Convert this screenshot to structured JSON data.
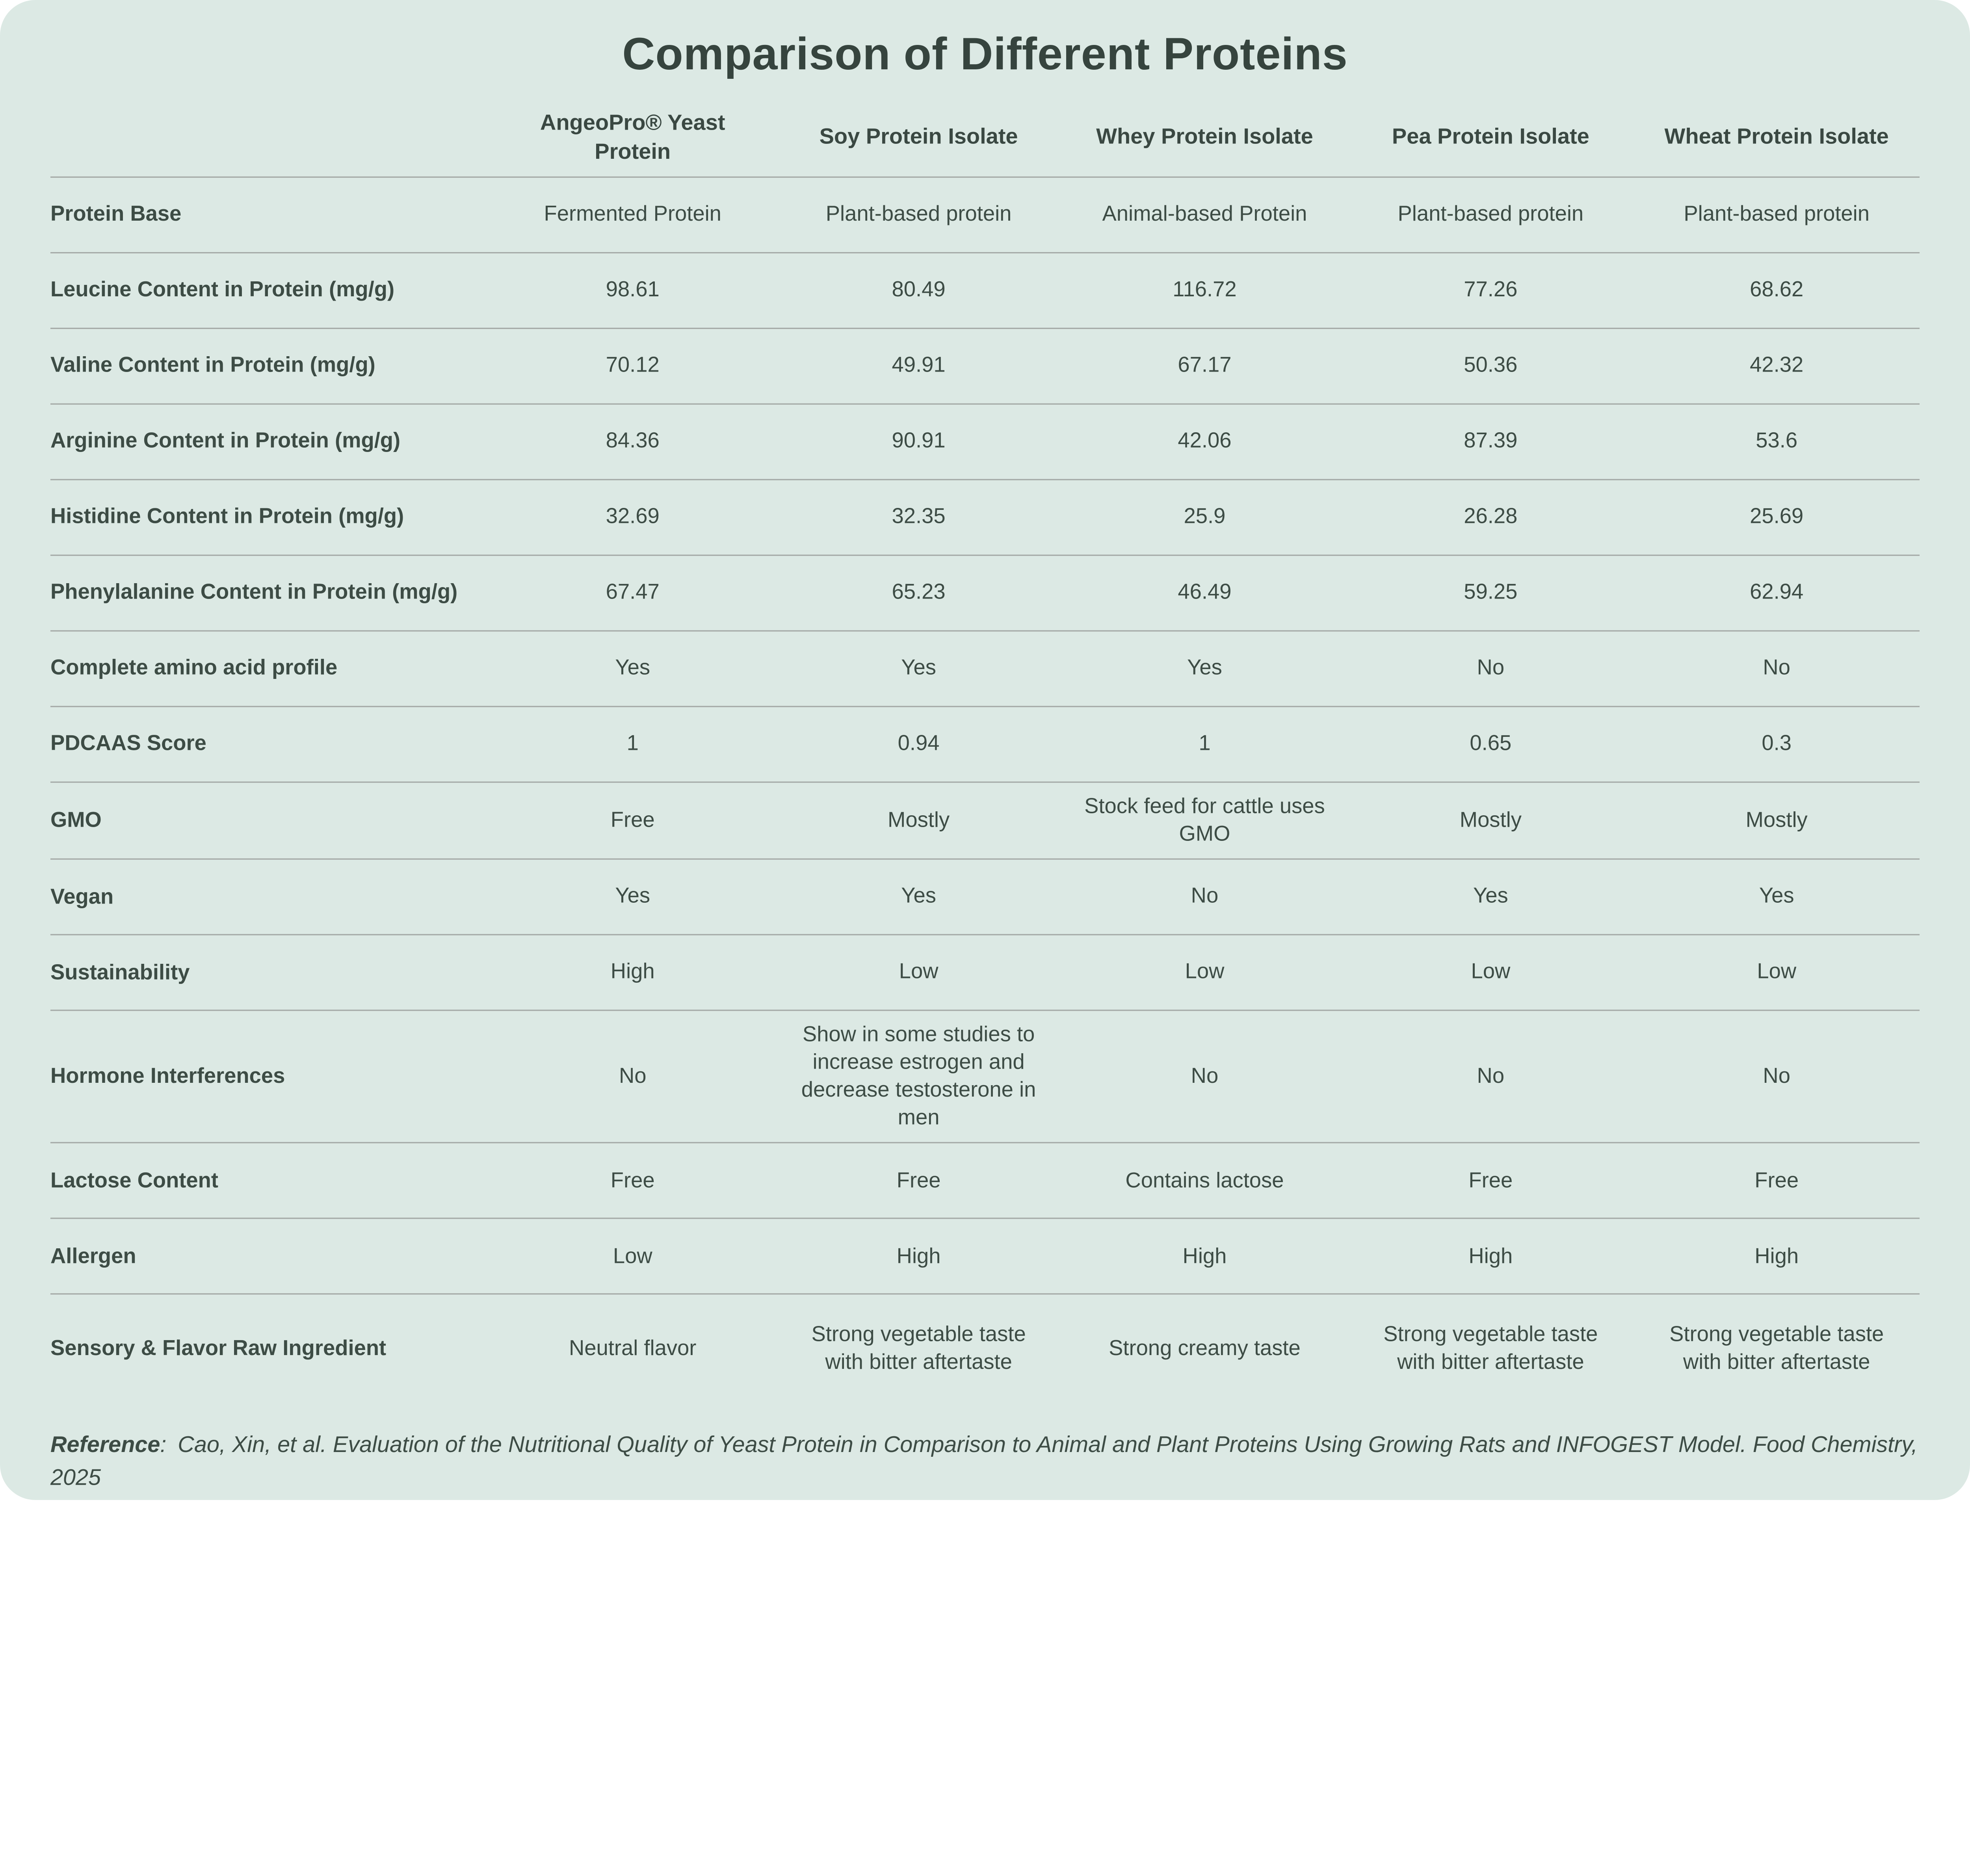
{
  "title": "Comparison of Different Proteins",
  "chart_data": {
    "type": "table",
    "title": "Comparison of Different Proteins",
    "columns": [
      "AngeoPro® Yeast Protein",
      "Soy Protein Isolate",
      "Whey Protein Isolate",
      "Pea Protein Isolate",
      "Wheat Protein Isolate"
    ],
    "rows": [
      {
        "label": "Protein Base",
        "values": [
          "Fermented Protein",
          "Plant-based protein",
          "Animal-based Protein",
          "Plant-based protein",
          "Plant-based protein"
        ]
      },
      {
        "label": "Leucine Content in Protein (mg/g)",
        "values": [
          "98.61",
          "80.49",
          "116.72",
          "77.26",
          "68.62"
        ]
      },
      {
        "label": "Valine Content in Protein (mg/g)",
        "values": [
          "70.12",
          "49.91",
          "67.17",
          "50.36",
          "42.32"
        ]
      },
      {
        "label": "Arginine Content in Protein (mg/g)",
        "values": [
          "84.36",
          "90.91",
          "42.06",
          "87.39",
          "53.6"
        ]
      },
      {
        "label": "Histidine Content in Protein (mg/g)",
        "values": [
          "32.69",
          "32.35",
          "25.9",
          "26.28",
          "25.69"
        ]
      },
      {
        "label": "Phenylalanine Content in Protein (mg/g)",
        "values": [
          "67.47",
          "65.23",
          "46.49",
          "59.25",
          "62.94"
        ]
      },
      {
        "label": "Complete amino acid profile",
        "values": [
          "Yes",
          "Yes",
          "Yes",
          "No",
          "No"
        ]
      },
      {
        "label": "PDCAAS Score",
        "values": [
          "1",
          "0.94",
          "1",
          "0.65",
          "0.3"
        ]
      },
      {
        "label": "GMO",
        "values": [
          "Free",
          "Mostly",
          "Stock feed for cattle uses GMO",
          "Mostly",
          "Mostly"
        ]
      },
      {
        "label": "Vegan",
        "values": [
          "Yes",
          "Yes",
          "No",
          "Yes",
          "Yes"
        ]
      },
      {
        "label": "Sustainability",
        "values": [
          "High",
          "Low",
          "Low",
          "Low",
          "Low"
        ]
      },
      {
        "label": "Hormone Interferences",
        "values": [
          "No",
          "Show in some studies to increase estrogen and decrease testosterone in men",
          "No",
          "No",
          "No"
        ]
      },
      {
        "label": "Lactose Content",
        "values": [
          "Free",
          "Free",
          "Contains lactose",
          "Free",
          "Free"
        ]
      },
      {
        "label": "Allergen",
        "values": [
          "Low",
          "High",
          "High",
          "High",
          "High"
        ]
      },
      {
        "label": "Sensory & Flavor Raw Ingredient",
        "values": [
          "Neutral flavor",
          "Strong vegetable taste with bitter aftertaste",
          "Strong creamy taste",
          "Strong vegetable taste with bitter aftertaste",
          "Strong vegetable taste with bitter aftertaste"
        ]
      }
    ]
  },
  "reference": {
    "label": "Reference",
    "separator": ":",
    "text": "Cao, Xin, et al. Evaluation of the Nutritional Quality of Yeast Protein in Comparison to Animal and Plant Proteins Using Growing Rats and INFOGEST Model. Food Chemistry, 2025"
  },
  "colors": {
    "page_bg": "#ffffff",
    "card_bg": "#dce9e4",
    "text": "#3d4c45",
    "title": "#36443e",
    "divider": "#a4a9a6"
  }
}
